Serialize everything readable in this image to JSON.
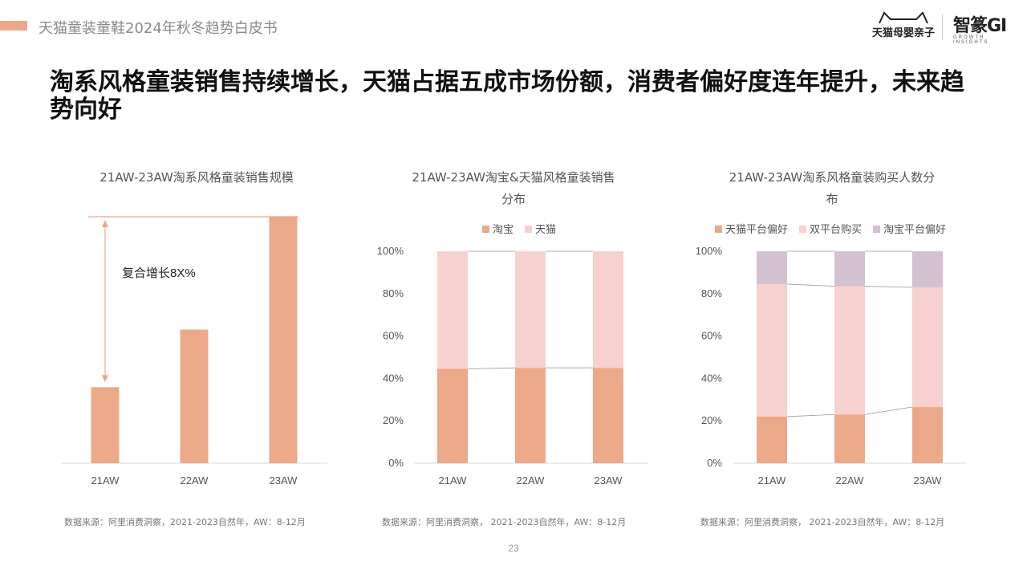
{
  "header": {
    "title": "天猫童装童鞋2024年秋冬趋势白皮书"
  },
  "logos": {
    "tmall": "天猫母婴亲子",
    "zhizuan_main": "智篆GI",
    "zhizuan_sub": "GROWTH INSIGHTS"
  },
  "headline": "淘系风格童装销售持续增长，天猫占据五成市场份额，消费者偏好度连年提升，未来趋势向好",
  "page_number": "23",
  "colors": {
    "accent": "#eca98a",
    "tmall_pink": "#f7d0d0",
    "taobao_pref": "#d3c1d2"
  },
  "charts": [
    {
      "title": "21AW-23AW淘系风格童装销售规模",
      "source": "数据来源：阿里消费洞察，2021-2023自然年，AW：8-12月",
      "annotation": "复合增长8X%"
    },
    {
      "title_line1": "21AW-23AW淘宝&天猫风格童装销售",
      "title_line2": "分布",
      "legend": [
        "淘宝",
        "天猫"
      ],
      "source": "数据来源：阿里消费洞察， 2021-2023自然年，AW：8-12月"
    },
    {
      "title_line1": "21AW-23AW淘系风格童装购买人数分",
      "title_line2": "布",
      "legend": [
        "天猫平台偏好",
        "双平台购买",
        "淘宝平台偏好"
      ],
      "source": "数据来源：阿里消费洞察， 2021-2023自然年，AW：8-12月"
    }
  ],
  "chart_data": [
    {
      "type": "bar",
      "categories": [
        "21AW",
        "22AW",
        "23AW"
      ],
      "values": [
        95,
        167,
        308
      ],
      "annotation": "复合增长8X%",
      "grid": false
    },
    {
      "type": "bar",
      "stacked": true,
      "categories": [
        "21AW",
        "22AW",
        "23AW"
      ],
      "series": [
        {
          "name": "淘宝",
          "values": [
            44.5,
            45,
            45
          ],
          "color": "#eca98a"
        },
        {
          "name": "天猫",
          "values": [
            55.5,
            55,
            55
          ],
          "color": "#f7d0d0"
        }
      ],
      "yticks": [
        "0%",
        "20%",
        "40%",
        "60%",
        "80%",
        "100%"
      ],
      "ylim": [
        0,
        100
      ],
      "legend_position": "top"
    },
    {
      "type": "bar",
      "stacked": true,
      "categories": [
        "21AW",
        "22AW",
        "23AW"
      ],
      "series": [
        {
          "name": "天猫平台偏好",
          "values": [
            22,
            23,
            26.5
          ],
          "color": "#eca98a"
        },
        {
          "name": "双平台购买",
          "values": [
            62.5,
            60.5,
            56.5
          ],
          "color": "#f7d0d0"
        },
        {
          "name": "淘宝平台偏好",
          "values": [
            15.5,
            16.5,
            17
          ],
          "color": "#d3c1d2"
        }
      ],
      "yticks": [
        "0%",
        "20%",
        "40%",
        "60%",
        "80%",
        "100%"
      ],
      "ylim": [
        0,
        100
      ],
      "legend_position": "top"
    }
  ]
}
